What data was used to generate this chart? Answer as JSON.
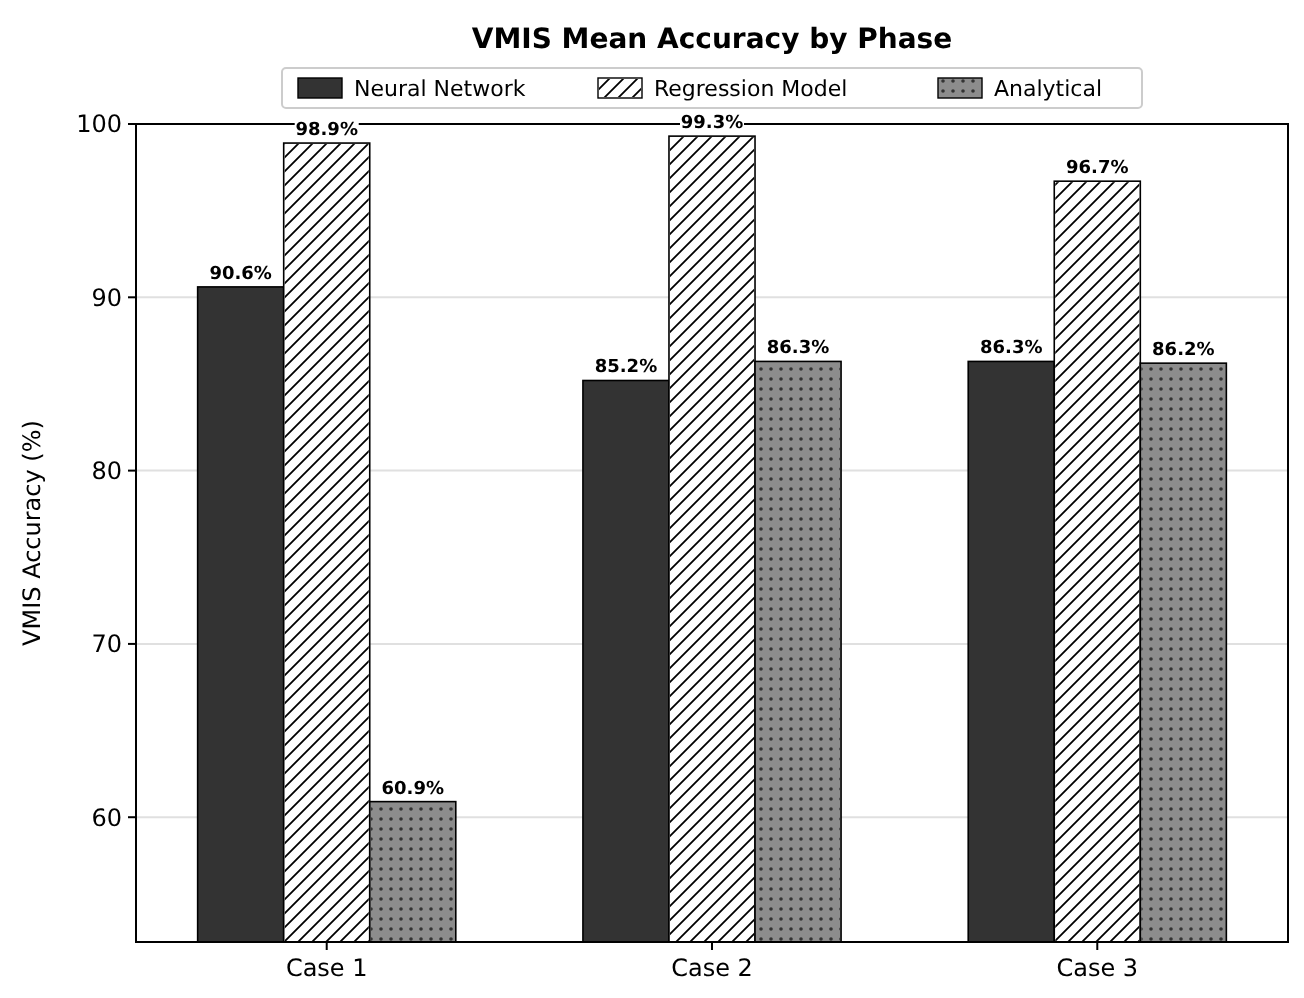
{
  "chart_data": {
    "type": "bar",
    "title": "VMIS Mean Accuracy by Phase",
    "ylabel": "VMIS Accuracy (%)",
    "categories": [
      "Case 1",
      "Case 2",
      "Case 3"
    ],
    "series": [
      {
        "name": "Neural Network",
        "color": "#333333",
        "values": [
          90.6,
          85.2,
          86.3
        ],
        "value_labels": [
          "90.6%",
          "85.2%",
          "86.3%"
        ]
      },
      {
        "name": "Regression Model",
        "color": "#ffffff",
        "values": [
          98.9,
          99.3,
          96.7
        ],
        "value_labels": [
          "98.9%",
          "99.3%",
          "96.7%"
        ]
      },
      {
        "name": "Analytical",
        "color": "#8c8c8c",
        "values": [
          60.9,
          86.3,
          86.2
        ],
        "value_labels": [
          "60.9%",
          "86.3%",
          "86.2%"
        ]
      }
    ],
    "ylim": [
      52.8,
      100
    ],
    "yticks": [
      60,
      70,
      80,
      90,
      100
    ],
    "grid": "y",
    "legend": "top"
  }
}
